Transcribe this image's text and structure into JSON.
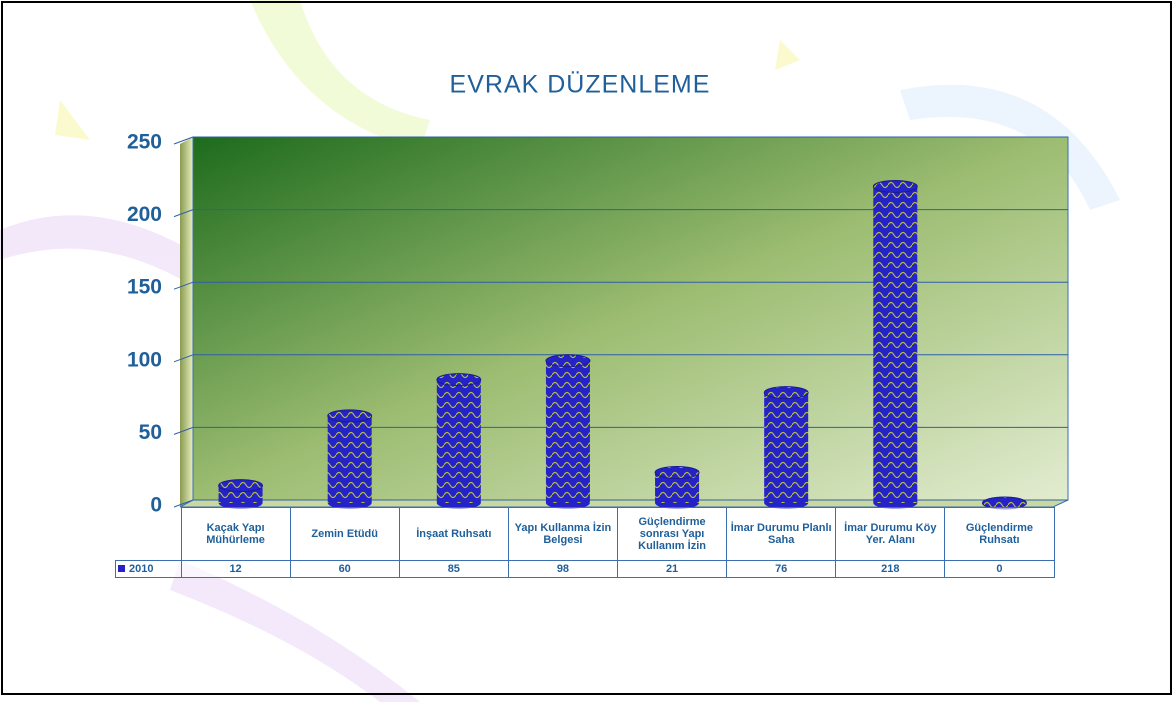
{
  "chart_data": {
    "type": "bar",
    "title": "EVRAK DÜZENLEME",
    "categories": [
      "Kaçak Yapı Mühürleme",
      "Zemin Etüdü",
      "İnşaat Ruhsatı",
      "Yapı Kullanma İzin Belgesi",
      "Güçlendirme sonrası Yapı Kullanım İzin",
      "İmar Durumu Planlı Saha",
      "İmar Durumu Köy Yer. Alanı",
      "Güçlendirme Ruhsatı"
    ],
    "series": [
      {
        "name": "2010",
        "color": "#2323c8",
        "values": [
          12,
          60,
          85,
          98,
          21,
          76,
          218,
          0
        ]
      }
    ],
    "ylim": [
      0,
      250
    ],
    "yticks": [
      0,
      50,
      100,
      150,
      200,
      250
    ],
    "grid": true
  }
}
